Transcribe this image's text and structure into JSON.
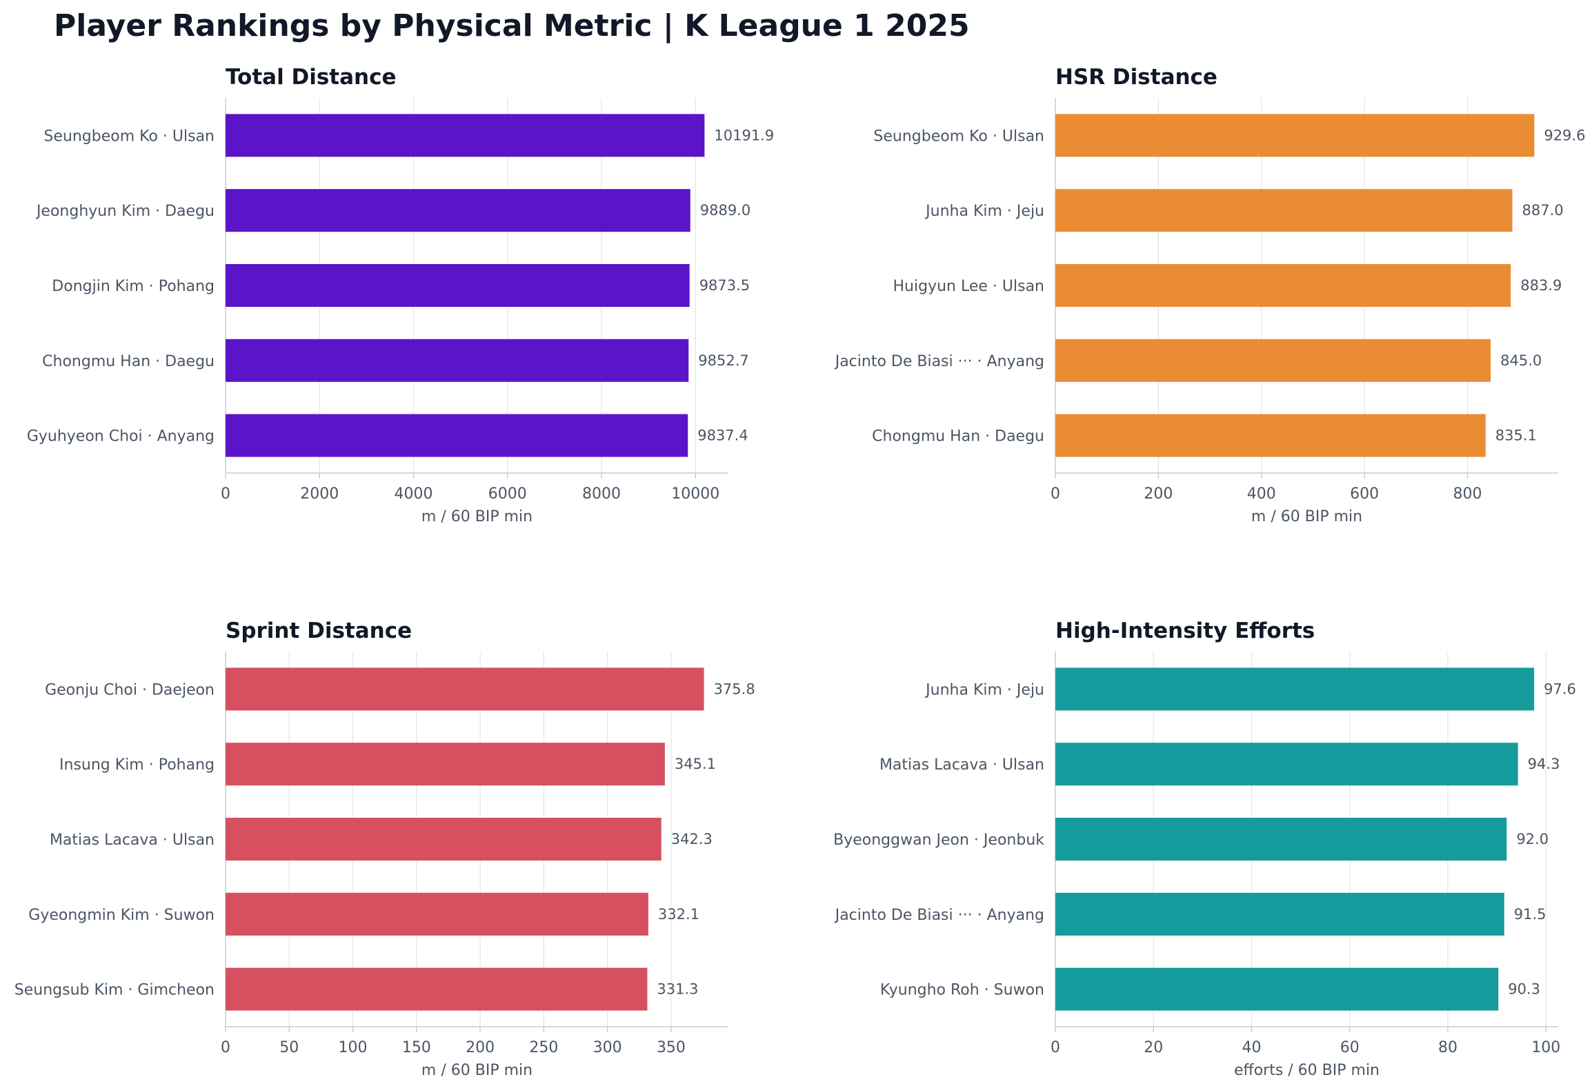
{
  "title": "Player Rankings by Physical Metric | K League 1 2025",
  "chart_data": [
    {
      "type": "bar",
      "orientation": "horizontal",
      "title": "Total Distance",
      "xlabel": "m / 60 BIP min",
      "color": "#5b14c8",
      "xlim": [
        0,
        10700
      ],
      "xticks": [
        0,
        2000,
        4000,
        6000,
        8000,
        10000
      ],
      "tick_labels": [
        "0",
        "2000",
        "4000",
        "6000",
        "8000",
        "10000"
      ],
      "grid": true,
      "categories": [
        "Seungbeom Ko · Ulsan",
        "Jeonghyun Kim · Daegu",
        "Dongjin Kim · Pohang",
        "Chongmu Han · Daegu",
        "Gyuhyeon Choi · Anyang"
      ],
      "values": [
        10191.9,
        9889.0,
        9873.5,
        9852.7,
        9837.4
      ],
      "value_labels": [
        "10191.9",
        "9889.0",
        "9873.5",
        "9852.7",
        "9837.4"
      ]
    },
    {
      "type": "bar",
      "orientation": "horizontal",
      "title": "HSR Distance",
      "xlabel": "m / 60 BIP min",
      "color": "#ea8c34",
      "xlim": [
        0,
        976
      ],
      "xticks": [
        0,
        200,
        400,
        600,
        800
      ],
      "tick_labels": [
        "0",
        "200",
        "400",
        "600",
        "800"
      ],
      "grid": true,
      "categories": [
        "Seungbeom Ko · Ulsan",
        "Junha Kim · Jeju",
        "Huigyun Lee · Ulsan",
        "Jacinto De Biasi ··· · Anyang",
        "Chongmu Han · Daegu"
      ],
      "values": [
        929.6,
        887.0,
        883.9,
        845.0,
        835.1
      ],
      "value_labels": [
        "929.6",
        "887.0",
        "883.9",
        "845.0",
        "835.1"
      ]
    },
    {
      "type": "bar",
      "orientation": "horizontal",
      "title": "Sprint Distance",
      "xlabel": "m / 60 BIP min",
      "color": "#d6505f",
      "xlim": [
        0,
        395
      ],
      "xticks": [
        0,
        50,
        100,
        150,
        200,
        250,
        300,
        350
      ],
      "tick_labels": [
        "0",
        "50",
        "100",
        "150",
        "200",
        "250",
        "300",
        "350"
      ],
      "grid": true,
      "categories": [
        "Geonju Choi · Daejeon",
        "Insung Kim · Pohang",
        "Matias Lacava · Ulsan",
        "Gyeongmin Kim · Suwon",
        "Seungsub Kim · Gimcheon"
      ],
      "values": [
        375.8,
        345.1,
        342.3,
        332.1,
        331.3
      ],
      "value_labels": [
        "375.8",
        "345.1",
        "342.3",
        "332.1",
        "331.3"
      ]
    },
    {
      "type": "bar",
      "orientation": "horizontal",
      "title": "High-Intensity Efforts",
      "xlabel": "efforts / 60 BIP min",
      "color": "#169b9c",
      "xlim": [
        0,
        102.5
      ],
      "xticks": [
        0,
        20,
        40,
        60,
        80,
        100
      ],
      "tick_labels": [
        "0",
        "20",
        "40",
        "60",
        "80",
        "100"
      ],
      "grid": true,
      "categories": [
        "Junha Kim · Jeju",
        "Matias Lacava · Ulsan",
        "Byeonggwan Jeon · Jeonbuk",
        "Jacinto De Biasi ··· · Anyang",
        "Kyungho Roh · Suwon"
      ],
      "values": [
        97.6,
        94.3,
        92.0,
        91.5,
        90.3
      ],
      "value_labels": [
        "97.6",
        "94.3",
        "92.0",
        "91.5",
        "90.3"
      ]
    }
  ]
}
